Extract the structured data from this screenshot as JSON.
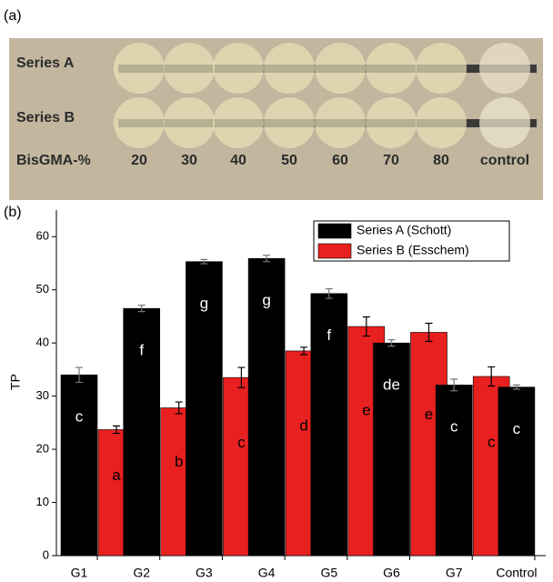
{
  "photo": {
    "label": "(a)",
    "rows": [
      "Series A",
      "Series B"
    ],
    "row_label": "BisGMA-%",
    "columns": [
      "20",
      "30",
      "40",
      "50",
      "60",
      "70",
      "80",
      "control"
    ]
  },
  "chart_data": {
    "type": "bar",
    "label": "(b)",
    "ylabel": "TP",
    "categories": [
      "G1",
      "G2",
      "G3",
      "G4",
      "G5",
      "G6",
      "G7",
      "Control"
    ],
    "series": [
      {
        "name": "Series A (Schott)",
        "color": "#000000",
        "values": [
          34,
          46.5,
          55.3,
          55.9,
          49.3,
          40,
          32.1,
          31.7
        ],
        "errors": [
          1.4,
          0.6,
          0.4,
          0.6,
          0.9,
          0.6,
          1.1,
          0.4
        ],
        "letters": [
          "c",
          "f",
          "g",
          "g",
          "f",
          "de",
          "c",
          "c"
        ]
      },
      {
        "name": "Series B (Esschem)",
        "color": "#e8201f",
        "values": [
          23.7,
          27.8,
          33.5,
          38.5,
          43.1,
          42,
          33.7,
          null
        ],
        "errors": [
          0.7,
          1.1,
          1.9,
          0.7,
          1.8,
          1.7,
          1.8,
          null
        ],
        "letters": [
          "a",
          "b",
          "c",
          "d",
          "e",
          "e",
          "c",
          null
        ]
      }
    ],
    "ylim": [
      0,
      65
    ],
    "yticks": [
      0,
      10,
      20,
      30,
      40,
      50,
      60
    ],
    "legend": "top-right"
  }
}
